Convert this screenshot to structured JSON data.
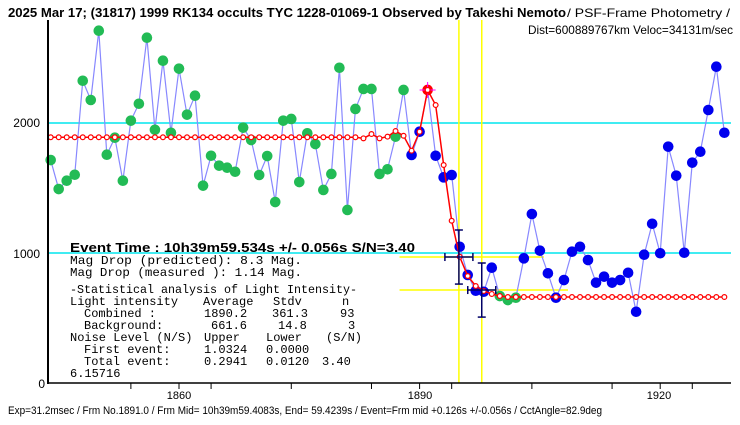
{
  "header": {
    "title_bold": "2025 Mar 17; (31817) 1999 RK134 occults TYC 1228-01069-1 Observed by Takeshi Nemoto",
    "title_rest": " / PSF-Frame Photometry /",
    "subtitle": "Dist=600889767km Veloc=34131m/sec"
  },
  "footer": "Exp=31.2msec / Frm No.1891.0 / Frm Mid= 10h39m59.4083s,  End= 59.4239s / Event=Frm mid +0.126s +/-0.056s / CctAngle=82.9deg",
  "panel": {
    "event_time": "Event Time : 10h39m59.534s  +/- 0.056s  S/N=3.40",
    "mag_pred": "Mag Drop (predicted):  8.3   Mag.",
    "mag_meas": "Mag Drop (measured ):  1.14  Mag.",
    "stat_title": "-Statistical analysis of Light Intensity-",
    "rows": [
      {
        "label": "Light intensity",
        "c1": "Average",
        "c2": "Stdv",
        "c3": "n"
      },
      {
        "label": "Combined  :",
        "c1": "1890.2",
        "c2": "361.3",
        "c3": "93"
      },
      {
        "label": "Background:",
        "c1": "661.6",
        "c2": "14.8",
        "c3": "3"
      },
      {
        "label": "Noise Level (N/S)",
        "c1": "Upper",
        "c2": "Lower",
        "c3": "(S/N)"
      },
      {
        "label": "First event:",
        "c1": "1.0324",
        "c2": "0.0000",
        "c3": ""
      },
      {
        "label": "Total event:",
        "c1": "0.2941",
        "c2": "0.0120",
        "c3": "3.40"
      }
    ],
    "extra": "6.15716"
  },
  "chart_data": {
    "type": "line",
    "x_tick_labels": [
      "1860",
      "1890",
      "1920"
    ],
    "x_minor_ticks": [
      1854,
      1864,
      1874,
      1884,
      1894,
      1904,
      1914,
      1924
    ],
    "y_tick_labels": [
      "0",
      "1000",
      "2000"
    ],
    "xlim": [
      1843.6,
      1928.9
    ],
    "ylim": [
      0,
      2945
    ],
    "frames": [
      1844,
      1845,
      1846,
      1847,
      1848,
      1849,
      1850,
      1851,
      1852,
      1853,
      1854,
      1855,
      1856,
      1857,
      1858,
      1859,
      1860,
      1861,
      1862,
      1863,
      1864,
      1865,
      1866,
      1867,
      1868,
      1869,
      1870,
      1871,
      1872,
      1873,
      1874,
      1875,
      1876,
      1877,
      1878,
      1879,
      1880,
      1881,
      1882,
      1883,
      1884,
      1885,
      1886,
      1887,
      1888,
      1889,
      1890,
      1891,
      1892,
      1893,
      1894,
      1895,
      1896,
      1897,
      1898,
      1899,
      1900,
      1901,
      1902,
      1903,
      1904,
      1905,
      1906,
      1907,
      1908,
      1909,
      1910,
      1911,
      1912,
      1913,
      1914,
      1915,
      1916,
      1917,
      1918,
      1919,
      1920,
      1921,
      1922,
      1923,
      1924,
      1925,
      1926,
      1927,
      1928
    ],
    "values": [
      1715,
      1492,
      1556,
      1602,
      2325,
      2177,
      2710,
      1756,
      1887,
      1556,
      2018,
      2148,
      2656,
      1948,
      2479,
      1925,
      2418,
      2064,
      2210,
      1518,
      1748,
      1672,
      1656,
      1625,
      1964,
      1869,
      1600,
      1746,
      1392,
      2018,
      2031,
      1546,
      1921,
      1838,
      1485,
      1608,
      2425,
      1331,
      2108,
      2262,
      2262,
      1608,
      1644,
      1895,
      2254,
      1754,
      1933,
      2254,
      1748,
      1582,
      1600,
      1048,
      831,
      710,
      702,
      887,
      669,
      638,
      656,
      959,
      1300,
      1018,
      844,
      656,
      792,
      1010,
      1048,
      946,
      772,
      818,
      772,
      792,
      848,
      548,
      987,
      1225,
      998,
      1818,
      1595,
      1002,
      1695,
      1779,
      2100,
      2433,
      1925
    ],
    "point_class": [
      "g",
      "g",
      "g",
      "g",
      "g",
      "g",
      "g",
      "g",
      "g",
      "g",
      "g",
      "g",
      "g",
      "g",
      "g",
      "g",
      "g",
      "g",
      "g",
      "g",
      "g",
      "g",
      "g",
      "g",
      "g",
      "g",
      "g",
      "g",
      "g",
      "g",
      "g",
      "g",
      "g",
      "g",
      "g",
      "g",
      "g",
      "g",
      "g",
      "g",
      "g",
      "g",
      "g",
      "g",
      "g",
      "b",
      "b",
      "r",
      "b",
      "b",
      "b",
      "b",
      "b",
      "b",
      "b",
      "b",
      "g",
      "g",
      "g",
      "b",
      "b",
      "b",
      "b",
      "b",
      "b",
      "b",
      "b",
      "b",
      "b",
      "b",
      "b",
      "b",
      "b",
      "b",
      "b",
      "b",
      "b",
      "b",
      "b",
      "b",
      "b",
      "b",
      "b",
      "b",
      "b"
    ],
    "model": [
      1890.2,
      1890.2,
      1890.2,
      1890.2,
      1890.2,
      1890.2,
      1890.2,
      1890.2,
      1890.2,
      1890.2,
      1890.2,
      1890.2,
      1890.2,
      1890.2,
      1890.2,
      1890.2,
      1890.2,
      1890.2,
      1890.2,
      1890.2,
      1890.2,
      1890.2,
      1890.2,
      1890.2,
      1890.2,
      1890.2,
      1890.2,
      1890.2,
      1890.2,
      1890.2,
      1890.2,
      1890.2,
      1890.2,
      1890.2,
      1890.2,
      1890.2,
      1890.2,
      1890.2,
      1890.2,
      1882,
      1915,
      1882,
      1895,
      1938,
      1902,
      1787,
      1933,
      2254,
      2138,
      1677,
      1248,
      971,
      823,
      746,
      708,
      685,
      669,
      661.6,
      661.6,
      661.6,
      661.6,
      661.6,
      661.6,
      661.6,
      661.6,
      661.6,
      661.6,
      661.6,
      661.6,
      661.6,
      661.6,
      661.6,
      661.6,
      661.6,
      661.6,
      661.6,
      661.6,
      661.6,
      661.6,
      661.6,
      661.6,
      661.6,
      661.6,
      661.6,
      661.6
    ],
    "reference_lines": [
      1000,
      2000
    ],
    "event_markers": [
      {
        "frame": 1894.9,
        "value": 969,
        "x_err": 1.75,
        "y_err": 208,
        "h_from": 1887.5,
        "h_to": 1905.5
      },
      {
        "frame": 1897.75,
        "value": 715,
        "x_err": 1.75,
        "y_err": 208,
        "h_from": 1887.5,
        "h_to": 1908.5
      }
    ],
    "colors": {
      "pre_event": "#22bb55",
      "post_event": "#0000ee",
      "connect": "#8888ff",
      "model": "#ff0000",
      "reference": "#00e5ee",
      "event": "#ffff00",
      "errorbar": "#000066",
      "highlight_cross": "#ff00ff"
    }
  }
}
